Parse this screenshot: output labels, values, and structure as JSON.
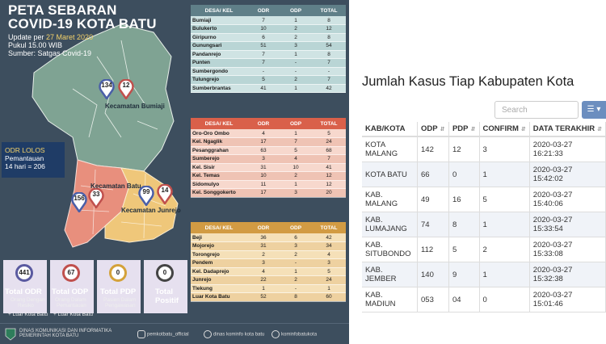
{
  "poster": {
    "title_line1": "PETA SEBARAN",
    "title_line2": "COVID-19 KOTA BATU",
    "update_prefix": "Update per ",
    "update_date": "27 Maret 2020",
    "update_time": "Pukul 15.00 WIB",
    "source": "Sumber: Satgas Covid-19",
    "kecamatan": {
      "bumiaji": {
        "label": "Kecamatan Bumiaji",
        "odr": "134",
        "odp": "12"
      },
      "batu": {
        "label": "Kecamatan Batu",
        "odr": "156",
        "odp": "33"
      },
      "junrejo": {
        "label": "Kecamatan Junrejo",
        "odr": "99",
        "odp": "14"
      }
    },
    "odr_lolos": {
      "line1": "ODR LOLOS",
      "line2": "Pemantauan",
      "line3": "14 hari = 206"
    },
    "stats": [
      {
        "value": "441",
        "title": "Total ODR",
        "sub1": "Orang Dengan",
        "sub2": "Resiko",
        "extra": "+ Luar Kota Batu",
        "color": "#5a5aa0"
      },
      {
        "value": "67",
        "title": "Total ODP",
        "sub1": "Orang Dalam",
        "sub2": "Pemantauan",
        "extra": "+ Luar Kota Batu",
        "color": "#c0504d"
      },
      {
        "value": "0",
        "title": "Total PDP",
        "sub1": "Pasien Dalam",
        "sub2": "Pengawasan",
        "extra": "",
        "color": "#d4a23a"
      },
      {
        "value": "0",
        "title": "Total",
        "sub1": "Positif",
        "sub2": "",
        "extra": "",
        "color": "#444444"
      }
    ],
    "footer": {
      "org1": "DINAS KOMUNIKASI DAN INFORMATIKA",
      "org2": "PEMERINTAH KOTA BATU",
      "instagram": "pemkotbatu_official",
      "facebook": "dinas kominfo kota batu",
      "web": "kominfobatukota"
    },
    "headers": {
      "desa": "DESA/ KEL",
      "odr": "ODR",
      "odp": "ODP",
      "total": "TOTAL"
    },
    "table1": [
      [
        "Bumiaji",
        "7",
        "1",
        "8"
      ],
      [
        "Bulukerto",
        "10",
        "2",
        "12"
      ],
      [
        "Giripurno",
        "6",
        "2",
        "8"
      ],
      [
        "Gunungsari",
        "51",
        "3",
        "54"
      ],
      [
        "Pandanrejo",
        "7",
        "1",
        "8"
      ],
      [
        "Punten",
        "7",
        "-",
        "7"
      ],
      [
        "Sumbergondo",
        "-",
        "-",
        "-"
      ],
      [
        "Tulungrejo",
        "5",
        "2",
        "7"
      ],
      [
        "Sumberbrantas",
        "41",
        "1",
        "42"
      ]
    ],
    "table2": [
      [
        "Oro-Oro Ombo",
        "4",
        "1",
        "5"
      ],
      [
        "Kel. Ngaglik",
        "17",
        "7",
        "24"
      ],
      [
        "Pesanggrahan",
        "63",
        "5",
        "68"
      ],
      [
        "Sumberejo",
        "3",
        "4",
        "7"
      ],
      [
        "Kel. Sisir",
        "31",
        "10",
        "41"
      ],
      [
        "Kel. Temas",
        "10",
        "2",
        "12"
      ],
      [
        "Sidomulyo",
        "11",
        "1",
        "12"
      ],
      [
        "Kel. Songgokerto",
        "17",
        "3",
        "20"
      ]
    ],
    "table3": [
      [
        "Beji",
        "36",
        "6",
        "42"
      ],
      [
        "Mojorejo",
        "31",
        "3",
        "34"
      ],
      [
        "Torongrejo",
        "2",
        "2",
        "4"
      ],
      [
        "Pendem",
        "3",
        "-",
        "3"
      ],
      [
        "Kel. Dadaprejo",
        "4",
        "1",
        "5"
      ],
      [
        "Junrejo",
        "22",
        "2",
        "24"
      ],
      [
        "Tlekung",
        "1",
        "-",
        "1"
      ],
      [
        "Luar Kota Batu",
        "52",
        "8",
        "60"
      ]
    ]
  },
  "panel": {
    "title": "Jumlah Kasus Tiap Kabupaten Kota",
    "search_placeholder": "Search",
    "view_icon": "list-icon",
    "columns": [
      "KAB/KOTA",
      "ODP",
      "PDP",
      "CONFIRM",
      "DATA TERAKHIR"
    ],
    "rows": [
      {
        "kab": "KOTA MALANG",
        "odp": "142",
        "pdp": "12",
        "confirm": "3",
        "date": "2020-03-27",
        "time": "16:21:33"
      },
      {
        "kab": "KOTA BATU",
        "odp": "66",
        "pdp": "0",
        "confirm": "1",
        "date": "2020-03-27",
        "time": "15:42:02"
      },
      {
        "kab": "KAB. MALANG",
        "odp": "49",
        "pdp": "16",
        "confirm": "5",
        "date": "2020-03-27",
        "time": "15:40:06"
      },
      {
        "kab": "KAB. LUMAJANG",
        "odp": "74",
        "pdp": "8",
        "confirm": "1",
        "date": "2020-03-27",
        "time": "15:33:54"
      },
      {
        "kab": "KAB. SITUBONDO",
        "odp": "112",
        "pdp": "5",
        "confirm": "2",
        "date": "2020-03-27",
        "time": "15:33:08"
      },
      {
        "kab": "KAB. JEMBER",
        "odp": "140",
        "pdp": "9",
        "confirm": "1",
        "date": "2020-03-27",
        "time": "15:32:38"
      },
      {
        "kab": "KAB. MADIUN",
        "odp": "053",
        "pdp": "04",
        "confirm": "0",
        "date": "2020-03-27",
        "time": "15:01:46"
      }
    ]
  }
}
